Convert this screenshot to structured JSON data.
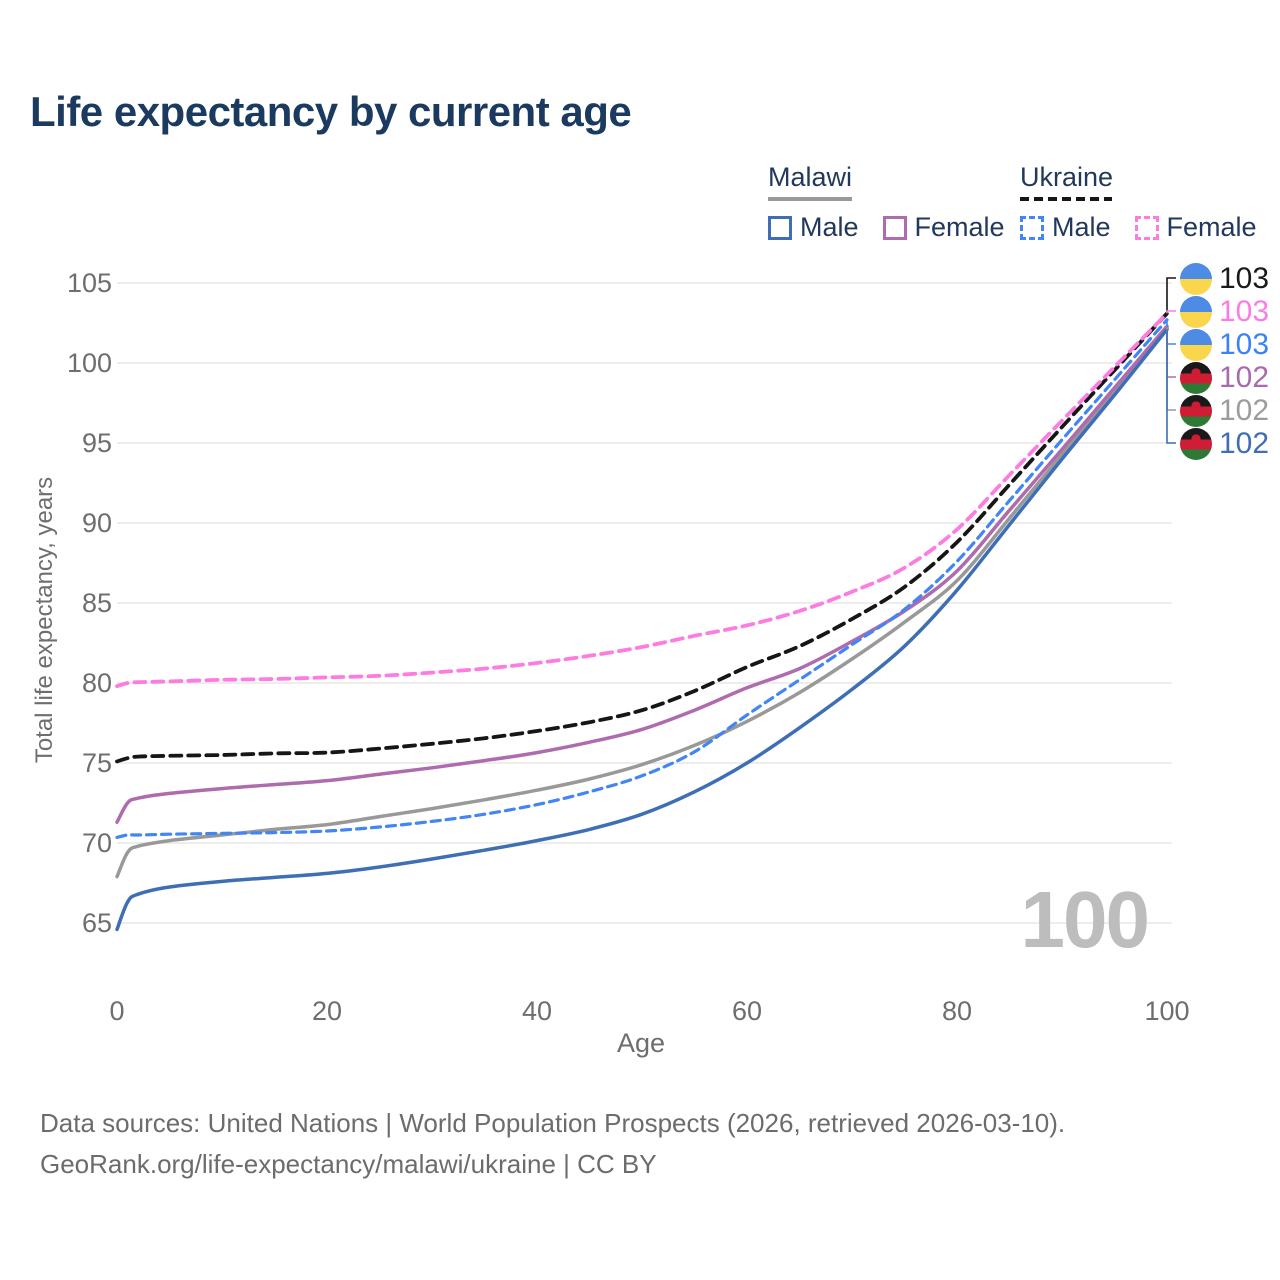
{
  "title": "Life expectancy by current age",
  "legend": {
    "groups": [
      {
        "country": "Malawi",
        "line_style": "solid",
        "underline_color": "#999999",
        "items": [
          {
            "label": "Male",
            "color": "#3e6fb5",
            "dashed": false
          },
          {
            "label": "Female",
            "color": "#ae6bae",
            "dashed": false
          }
        ]
      },
      {
        "country": "Ukraine",
        "line_style": "dashed",
        "underline_color": "#161616",
        "items": [
          {
            "label": "Male",
            "color": "#4285f4",
            "dashed": true
          },
          {
            "label": "Female",
            "color": "#fc7ce0",
            "dashed": true
          }
        ]
      }
    ]
  },
  "chart_data": {
    "type": "line",
    "title": "Life expectancy by current age",
    "xlabel": "Age",
    "ylabel": "Total life expectancy, years",
    "xlim": [
      0,
      100
    ],
    "ylim": [
      65,
      105
    ],
    "xticks": [
      0,
      20,
      40,
      60,
      80,
      100
    ],
    "yticks": [
      65,
      70,
      75,
      80,
      85,
      90,
      95,
      100,
      105
    ],
    "grid": "horizontal-only",
    "legend_position": "top-right",
    "series": [
      {
        "key": "malawi-total",
        "country": "Malawi",
        "sex": "Both",
        "color": "#999999",
        "dash": null,
        "width": 3.5,
        "points": [
          [
            0,
            67.9
          ],
          [
            1,
            69.4
          ],
          [
            2,
            69.8
          ],
          [
            5,
            70.15
          ],
          [
            10,
            70.5
          ],
          [
            15,
            70.85
          ],
          [
            20,
            71.15
          ],
          [
            25,
            71.65
          ],
          [
            30,
            72.15
          ],
          [
            35,
            72.7
          ],
          [
            40,
            73.3
          ],
          [
            45,
            74.0
          ],
          [
            50,
            74.9
          ],
          [
            55,
            76.1
          ],
          [
            60,
            77.6
          ],
          [
            65,
            79.4
          ],
          [
            70,
            81.5
          ],
          [
            75,
            83.8
          ],
          [
            80,
            86.4
          ],
          [
            85,
            90.3
          ],
          [
            90,
            94.3
          ],
          [
            95,
            98.25
          ],
          [
            100,
            102.2
          ]
        ]
      },
      {
        "key": "malawi-female",
        "country": "Malawi",
        "sex": "Female",
        "color": "#ae6bae",
        "dash": null,
        "width": 3.5,
        "points": [
          [
            0,
            71.3
          ],
          [
            1,
            72.5
          ],
          [
            2,
            72.8
          ],
          [
            5,
            73.1
          ],
          [
            10,
            73.4
          ],
          [
            15,
            73.65
          ],
          [
            20,
            73.9
          ],
          [
            25,
            74.3
          ],
          [
            30,
            74.7
          ],
          [
            35,
            75.15
          ],
          [
            40,
            75.65
          ],
          [
            45,
            76.3
          ],
          [
            50,
            77.1
          ],
          [
            55,
            78.3
          ],
          [
            60,
            79.7
          ],
          [
            65,
            80.9
          ],
          [
            70,
            82.6
          ],
          [
            75,
            84.5
          ],
          [
            80,
            87.0
          ],
          [
            85,
            90.8
          ],
          [
            90,
            94.6
          ],
          [
            95,
            98.45
          ],
          [
            100,
            102.3
          ]
        ]
      },
      {
        "key": "malawi-male",
        "country": "Malawi",
        "sex": "Male",
        "color": "#3e6fb5",
        "dash": null,
        "width": 3.5,
        "points": [
          [
            0,
            64.6
          ],
          [
            1,
            66.3
          ],
          [
            2,
            66.8
          ],
          [
            5,
            67.25
          ],
          [
            10,
            67.6
          ],
          [
            15,
            67.85
          ],
          [
            20,
            68.1
          ],
          [
            25,
            68.5
          ],
          [
            30,
            69.0
          ],
          [
            35,
            69.55
          ],
          [
            40,
            70.15
          ],
          [
            45,
            70.85
          ],
          [
            50,
            71.8
          ],
          [
            55,
            73.2
          ],
          [
            60,
            75.0
          ],
          [
            65,
            77.2
          ],
          [
            70,
            79.6
          ],
          [
            75,
            82.3
          ],
          [
            80,
            85.8
          ],
          [
            85,
            89.9
          ],
          [
            90,
            94.0
          ],
          [
            95,
            98.0
          ],
          [
            100,
            102.1
          ]
        ]
      },
      {
        "key": "ukraine-total",
        "country": "Ukraine",
        "sex": "Both",
        "color": "#161616",
        "dash": "11 7",
        "width": 3.8,
        "points": [
          [
            0,
            75.1
          ],
          [
            1,
            75.3
          ],
          [
            2,
            75.4
          ],
          [
            5,
            75.45
          ],
          [
            10,
            75.5
          ],
          [
            15,
            75.6
          ],
          [
            20,
            75.65
          ],
          [
            25,
            75.9
          ],
          [
            30,
            76.2
          ],
          [
            35,
            76.55
          ],
          [
            40,
            77.0
          ],
          [
            45,
            77.55
          ],
          [
            50,
            78.3
          ],
          [
            55,
            79.5
          ],
          [
            60,
            81.0
          ],
          [
            65,
            82.3
          ],
          [
            70,
            84.0
          ],
          [
            75,
            86.0
          ],
          [
            80,
            88.8
          ],
          [
            85,
            92.4
          ],
          [
            90,
            96.0
          ],
          [
            95,
            99.55
          ],
          [
            100,
            103.1
          ]
        ]
      },
      {
        "key": "ukraine-male",
        "country": "Ukraine",
        "sex": "Male",
        "color": "#4285f4",
        "dash": "9 6",
        "width": 3.2,
        "points": [
          [
            0,
            70.35
          ],
          [
            1,
            70.5
          ],
          [
            2,
            70.5
          ],
          [
            5,
            70.55
          ],
          [
            10,
            70.6
          ],
          [
            15,
            70.65
          ],
          [
            20,
            70.75
          ],
          [
            25,
            71.0
          ],
          [
            30,
            71.35
          ],
          [
            35,
            71.8
          ],
          [
            40,
            72.4
          ],
          [
            45,
            73.2
          ],
          [
            50,
            74.2
          ],
          [
            55,
            75.7
          ],
          [
            60,
            78.0
          ],
          [
            65,
            80.2
          ],
          [
            70,
            82.4
          ],
          [
            75,
            84.6
          ],
          [
            80,
            87.6
          ],
          [
            85,
            91.4
          ],
          [
            90,
            95.2
          ],
          [
            95,
            98.95
          ],
          [
            100,
            102.7
          ]
        ]
      },
      {
        "key": "ukraine-female",
        "country": "Ukraine",
        "sex": "Female",
        "color": "#fc7ce0",
        "dash": "11 7",
        "width": 3.8,
        "points": [
          [
            0,
            79.8
          ],
          [
            1,
            80.0
          ],
          [
            2,
            80.05
          ],
          [
            5,
            80.1
          ],
          [
            10,
            80.2
          ],
          [
            15,
            80.25
          ],
          [
            20,
            80.35
          ],
          [
            25,
            80.45
          ],
          [
            30,
            80.65
          ],
          [
            35,
            80.9
          ],
          [
            40,
            81.25
          ],
          [
            45,
            81.7
          ],
          [
            50,
            82.25
          ],
          [
            55,
            82.95
          ],
          [
            60,
            83.6
          ],
          [
            65,
            84.5
          ],
          [
            70,
            85.7
          ],
          [
            75,
            87.2
          ],
          [
            80,
            89.6
          ],
          [
            85,
            93.0
          ],
          [
            90,
            96.4
          ],
          [
            95,
            99.75
          ],
          [
            100,
            103.1
          ]
        ]
      }
    ],
    "end_labels": [
      {
        "series": "ukraine-total",
        "value": "103",
        "color": "#1a1a1a",
        "flag": "ukraine"
      },
      {
        "series": "ukraine-female",
        "value": "103",
        "color": "#fb7ce2",
        "flag": "ukraine"
      },
      {
        "series": "ukraine-male",
        "value": "103",
        "color": "#3b82f6",
        "flag": "ukraine"
      },
      {
        "series": "malawi-female",
        "value": "102",
        "color": "#a76cac",
        "flag": "malawi"
      },
      {
        "series": "malawi-total",
        "value": "102",
        "color": "#9c9c9c",
        "flag": "malawi"
      },
      {
        "series": "malawi-male",
        "value": "102",
        "color": "#3e6fb5",
        "flag": "malawi"
      }
    ]
  },
  "watermark": "100",
  "footer": {
    "line1": "Data sources: United Nations | World Population Prospects (2026, retrieved 2026-03-10).",
    "line2": "GeoRank.org/life-expectancy/malawi/ukraine | CC BY"
  }
}
